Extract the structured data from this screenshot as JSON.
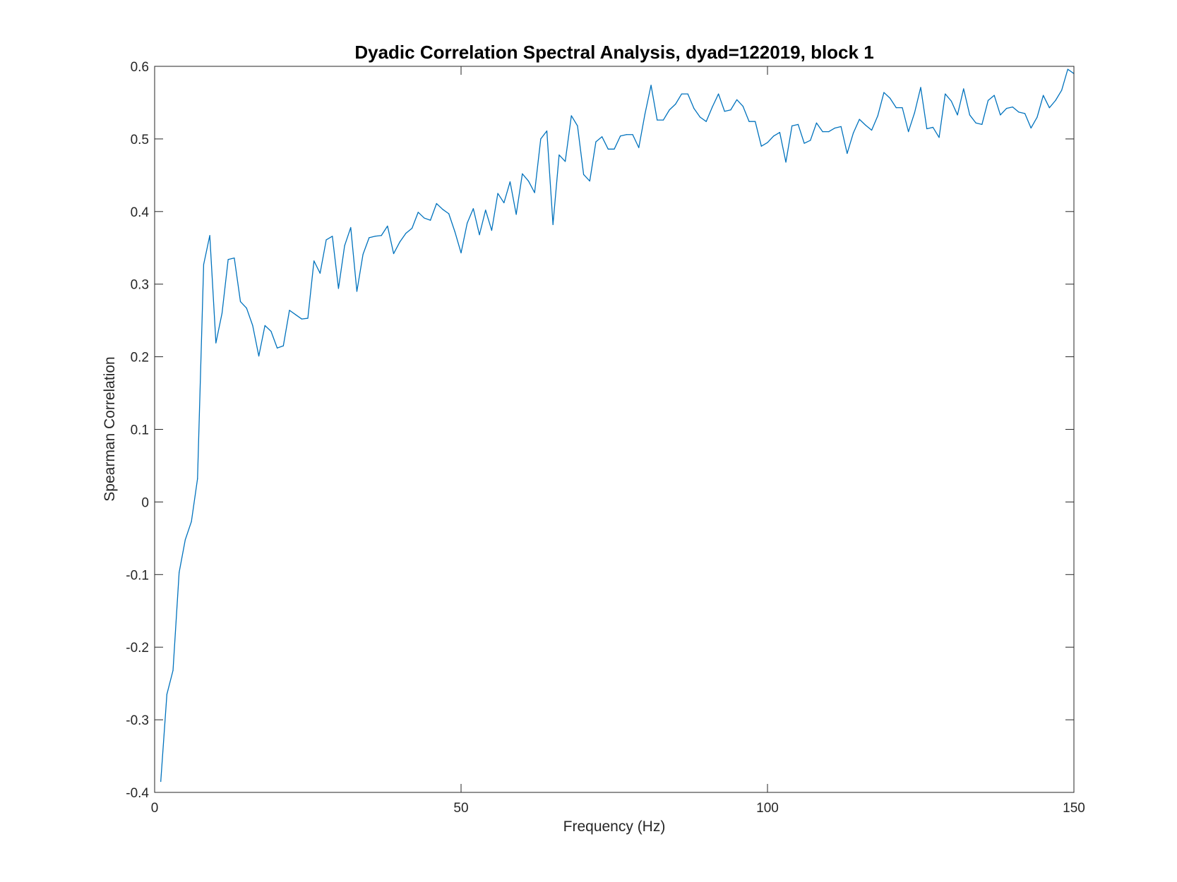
{
  "chart_data": {
    "type": "line",
    "title": "Dyadic Correlation Spectral Analysis, dyad=122019, block 1",
    "xlabel": "Frequency (Hz)",
    "ylabel": "Spearman Correlation",
    "xlim": [
      0,
      150
    ],
    "ylim": [
      -0.4,
      0.6
    ],
    "xticks": [
      0,
      50,
      100,
      150
    ],
    "xtick_labels": [
      "0",
      "50",
      "100",
      "150"
    ],
    "yticks": [
      -0.4,
      -0.3,
      -0.2,
      -0.1,
      0,
      0.1,
      0.2,
      0.3,
      0.4,
      0.5,
      0.6
    ],
    "ytick_labels": [
      "-0.4",
      "-0.3",
      "-0.2",
      "-0.1",
      "0",
      "0.1",
      "0.2",
      "0.3",
      "0.4",
      "0.5",
      "0.6"
    ],
    "grid": false,
    "line_color": "#0072BD",
    "series": [
      {
        "name": "correlation",
        "x": [
          1,
          2,
          3,
          4,
          5,
          6,
          7,
          8,
          9,
          10,
          11,
          12,
          13,
          14,
          15,
          16,
          17,
          18,
          19,
          20,
          21,
          22,
          23,
          24,
          25,
          26,
          27,
          28,
          29,
          30,
          31,
          32,
          33,
          34,
          35,
          36,
          37,
          38,
          39,
          40,
          41,
          42,
          43,
          44,
          45,
          46,
          47,
          48,
          49,
          50,
          51,
          52,
          53,
          54,
          55,
          56,
          57,
          58,
          59,
          60,
          61,
          62,
          63,
          64,
          65,
          66,
          67,
          68,
          69,
          70,
          71,
          72,
          73,
          74,
          75,
          76,
          77,
          78,
          79,
          80,
          81,
          82,
          83,
          84,
          85,
          86,
          87,
          88,
          89,
          90,
          91,
          92,
          93,
          94,
          95,
          96,
          97,
          98,
          99,
          100,
          101,
          102,
          103,
          104,
          105,
          106,
          107,
          108,
          109,
          110,
          111,
          112,
          113,
          114,
          115,
          116,
          117,
          118,
          119,
          120,
          121,
          122,
          123,
          124,
          125,
          126,
          127,
          128,
          129,
          130,
          131,
          132,
          133,
          134,
          135,
          136,
          137,
          138,
          139,
          140,
          141,
          142,
          143,
          144,
          145,
          146,
          147,
          148,
          149,
          150
        ],
        "values": [
          -0.385,
          -0.265,
          -0.232,
          -0.097,
          -0.052,
          -0.027,
          0.032,
          0.327,
          0.367,
          0.219,
          0.26,
          0.334,
          0.336,
          0.276,
          0.267,
          0.243,
          0.201,
          0.243,
          0.235,
          0.212,
          0.215,
          0.264,
          0.258,
          0.252,
          0.253,
          0.332,
          0.315,
          0.361,
          0.366,
          0.294,
          0.353,
          0.378,
          0.29,
          0.341,
          0.364,
          0.366,
          0.367,
          0.38,
          0.342,
          0.358,
          0.37,
          0.377,
          0.399,
          0.391,
          0.388,
          0.411,
          0.403,
          0.397,
          0.372,
          0.343,
          0.384,
          0.404,
          0.368,
          0.402,
          0.374,
          0.425,
          0.412,
          0.441,
          0.396,
          0.452,
          0.442,
          0.426,
          0.5,
          0.511,
          0.382,
          0.478,
          0.469,
          0.532,
          0.518,
          0.451,
          0.442,
          0.496,
          0.503,
          0.486,
          0.486,
          0.504,
          0.506,
          0.506,
          0.488,
          0.534,
          0.574,
          0.526,
          0.526,
          0.54,
          0.548,
          0.562,
          0.562,
          0.542,
          0.53,
          0.524,
          0.544,
          0.562,
          0.538,
          0.54,
          0.554,
          0.545,
          0.524,
          0.524,
          0.49,
          0.495,
          0.504,
          0.509,
          0.468,
          0.518,
          0.52,
          0.494,
          0.498,
          0.522,
          0.51,
          0.51,
          0.515,
          0.517,
          0.48,
          0.508,
          0.527,
          0.519,
          0.512,
          0.532,
          0.564,
          0.556,
          0.543,
          0.543,
          0.51,
          0.536,
          0.571,
          0.514,
          0.516,
          0.502,
          0.562,
          0.552,
          0.533,
          0.569,
          0.533,
          0.522,
          0.52,
          0.553,
          0.56,
          0.533,
          0.542,
          0.544,
          0.537,
          0.535,
          0.515,
          0.53,
          0.56,
          0.543,
          0.553,
          0.567,
          0.596,
          0.59
        ]
      }
    ]
  }
}
